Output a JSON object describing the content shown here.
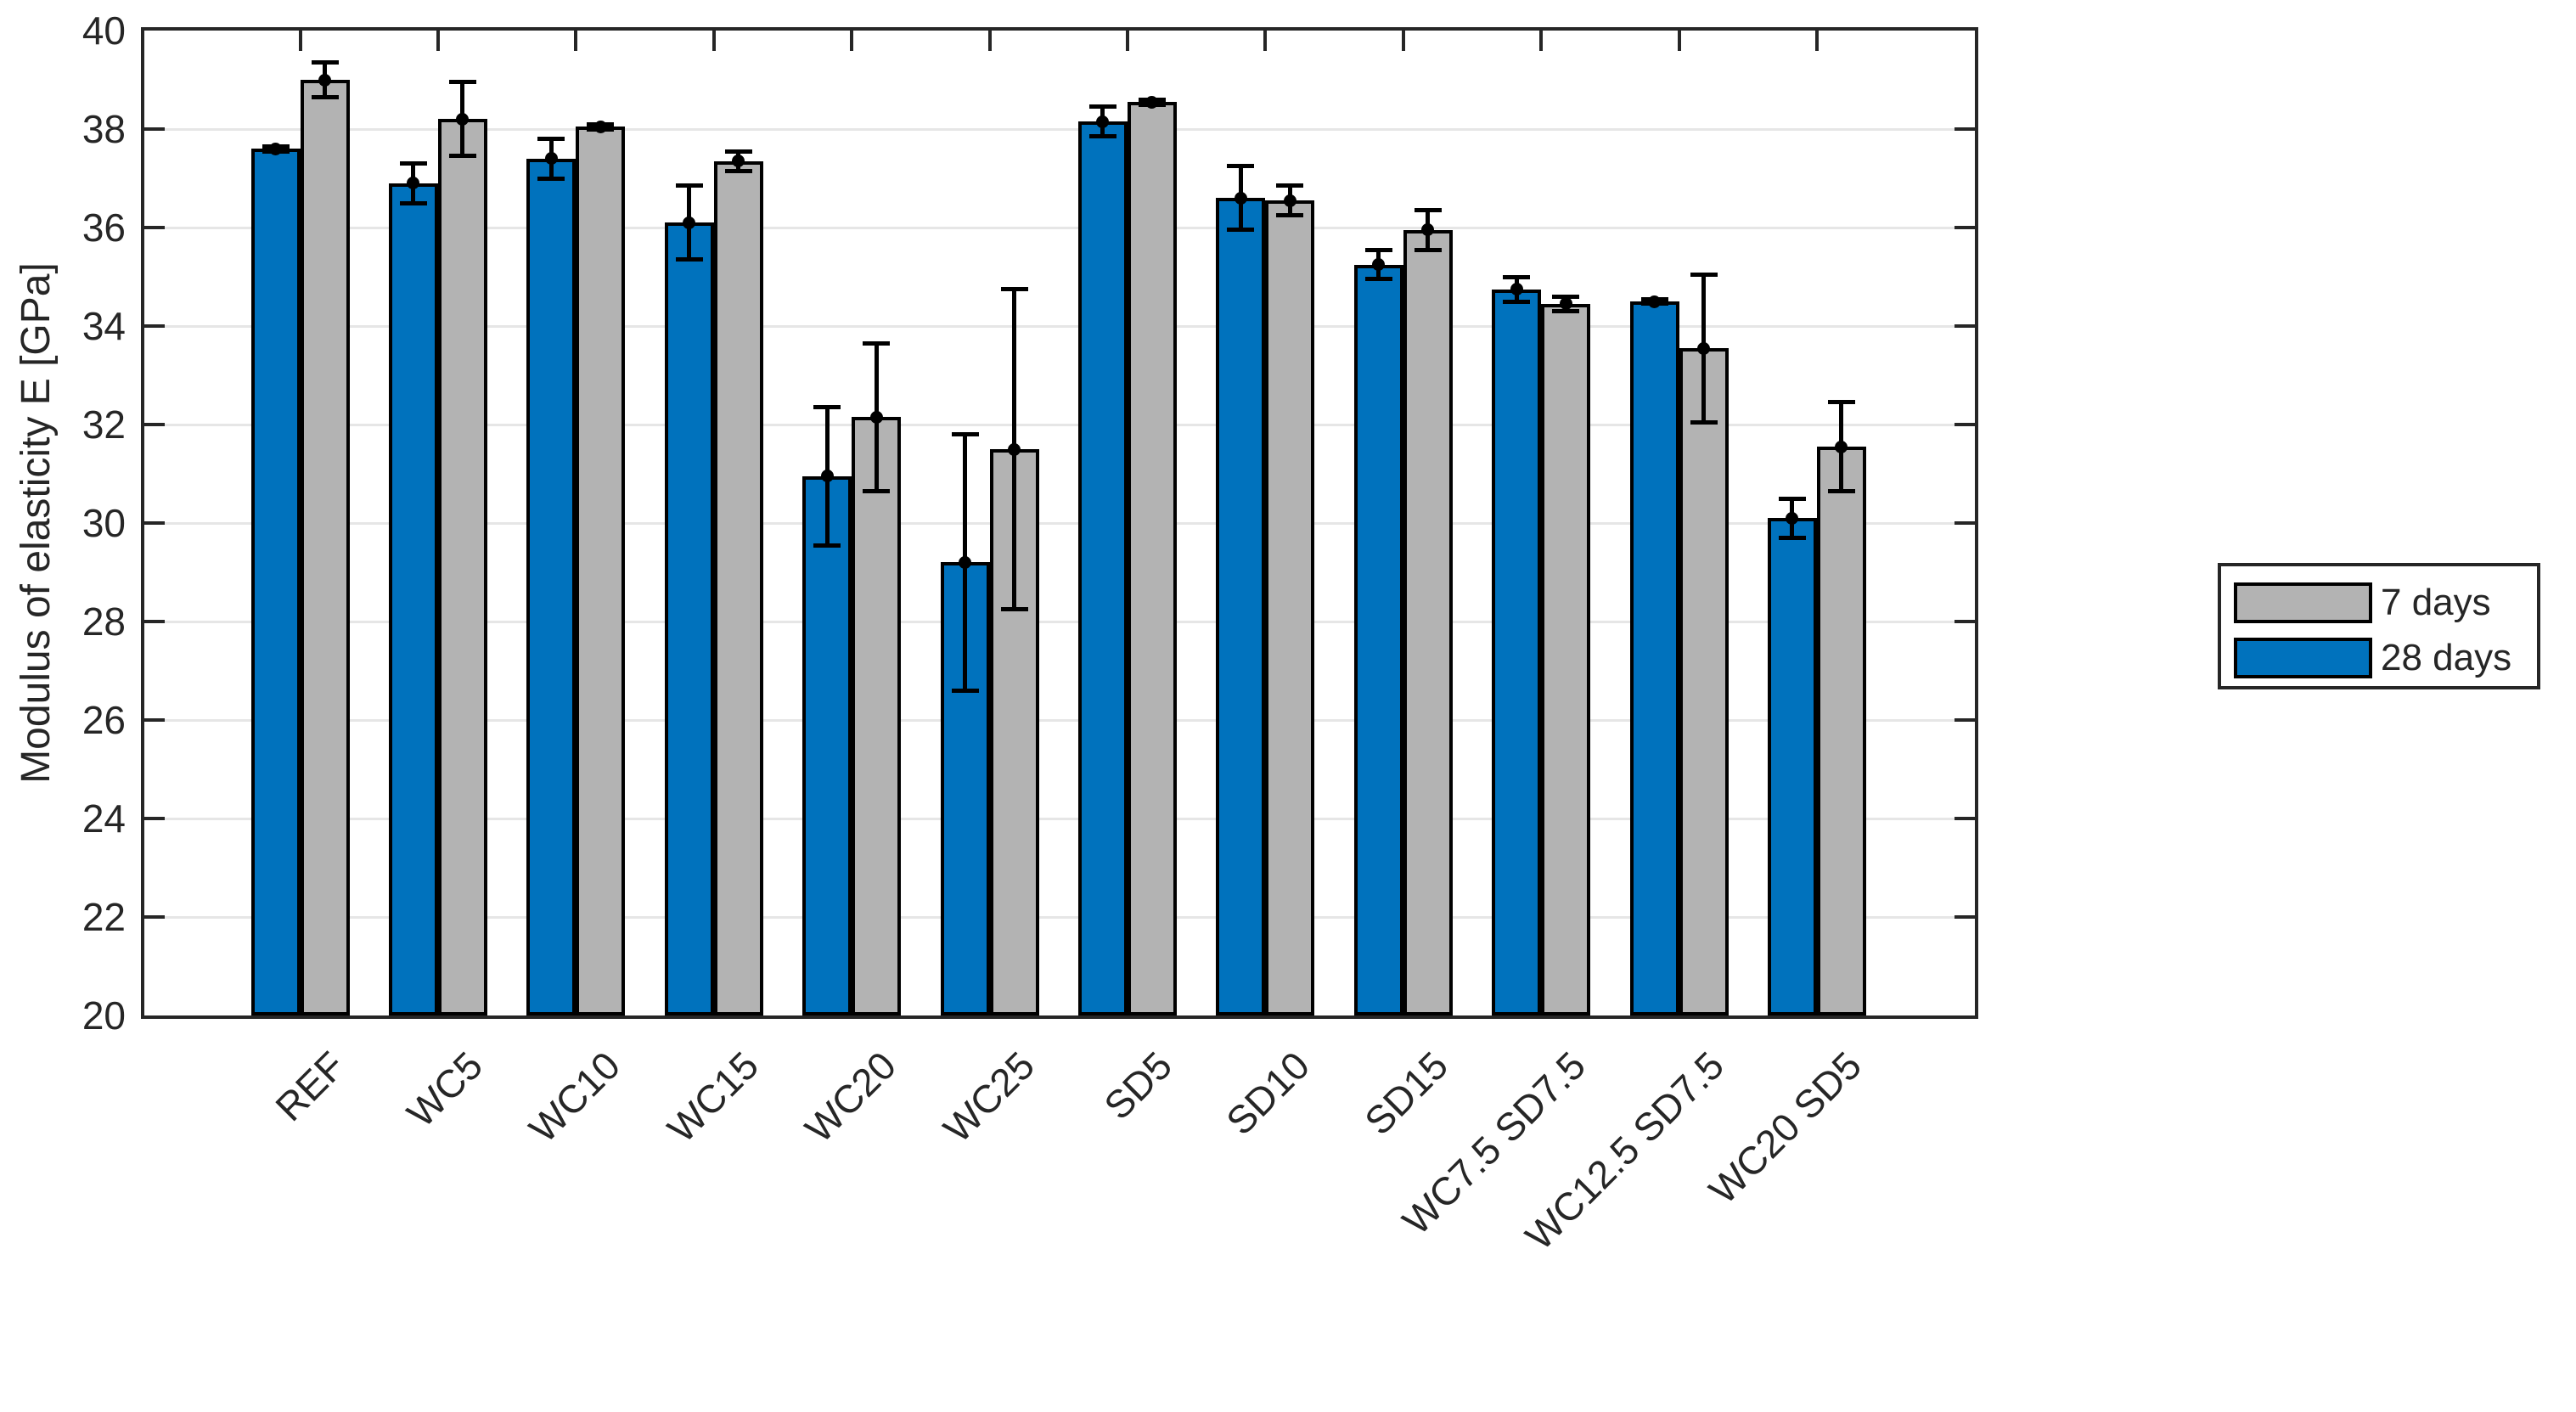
{
  "figure": {
    "background": "#ffffff"
  },
  "chart_data": {
    "type": "bar",
    "title": "",
    "xlabel": "",
    "ylabel": "Modulus of elasticity E [GPa]",
    "ylim": [
      20,
      40
    ],
    "yticks": [
      20,
      22,
      24,
      26,
      28,
      30,
      32,
      34,
      36,
      38,
      40
    ],
    "grid": "horizontal",
    "gridline_color": "#e6e6e6",
    "axis_color": "#262626",
    "text_color": "#262626",
    "bar_edge_color": "#000000",
    "error_bar": {
      "color": "#000000",
      "marker": "filled-circle",
      "caps": true
    },
    "legend_position": "outside-right",
    "categories": [
      "REF",
      "WC5",
      "WC10",
      "WC15",
      "WC20",
      "WC25",
      "SD5",
      "SD10",
      "SD15",
      "WC7.5 SD7.5",
      "WC12.5 SD7.5",
      "WC20 SD5"
    ],
    "series": [
      {
        "name": "7 days",
        "color": "#b3b3b3",
        "bar_side": "right",
        "values": [
          39.0,
          38.2,
          38.05,
          37.35,
          32.15,
          31.5,
          38.55,
          36.55,
          35.95,
          34.45,
          33.55,
          31.55
        ],
        "errors": [
          0.35,
          0.75,
          0.05,
          0.2,
          1.5,
          3.25,
          0.05,
          0.3,
          0.4,
          0.15,
          1.5,
          0.9
        ]
      },
      {
        "name": "28 days",
        "color": "#0072bd",
        "bar_side": "left",
        "values": [
          37.6,
          36.9,
          37.4,
          36.1,
          30.95,
          29.2,
          38.15,
          36.6,
          35.25,
          34.75,
          34.5,
          30.1
        ],
        "errors": [
          0.05,
          0.4,
          0.4,
          0.75,
          1.4,
          2.6,
          0.3,
          0.65,
          0.3,
          0.25,
          0.05,
          0.4
        ]
      }
    ]
  }
}
